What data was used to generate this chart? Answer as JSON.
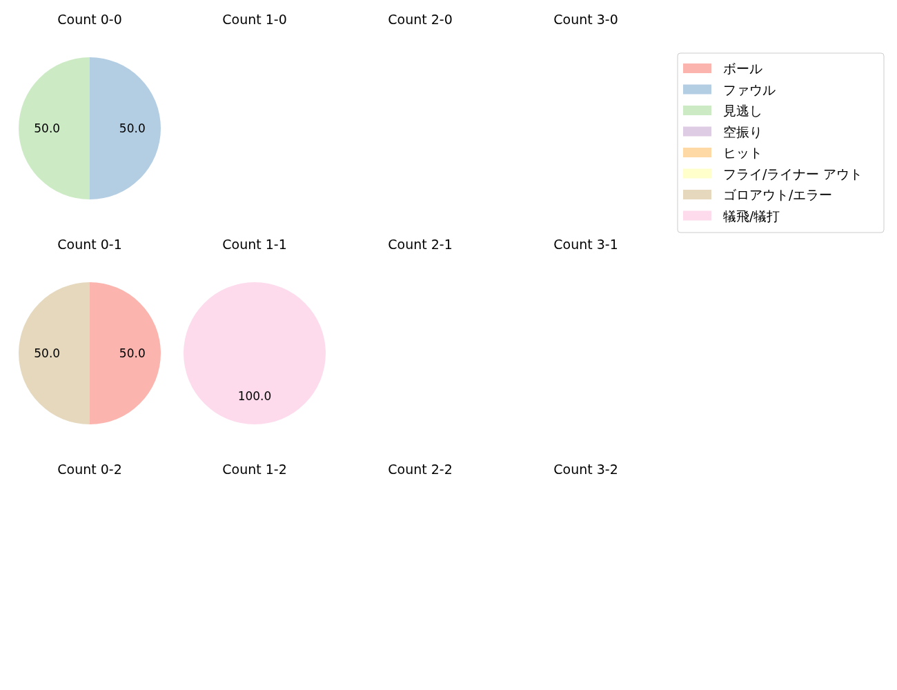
{
  "chart_data": [
    {
      "type": "pie",
      "title": "Count 0-0",
      "legend": "right",
      "categories": [
        "ボール",
        "ファウル",
        "見逃し",
        "空振り",
        "ヒット",
        "フライ/ライナー アウト",
        "ゴロアウト/エラー",
        "犠飛/犠打"
      ],
      "values": [
        0,
        50,
        50,
        0,
        0,
        0,
        0,
        0
      ],
      "value_labels": [
        null,
        "50.0",
        "50.0",
        null,
        null,
        null,
        null,
        null
      ],
      "colors": [
        "#fbb4ae",
        "#b3cde3",
        "#ccebc5",
        "#decbe4",
        "#fed9a6",
        "#ffffcc",
        "#e5d8bd",
        "#fddaec"
      ]
    },
    {
      "type": "pie",
      "title": "Count 1-0"
    },
    {
      "type": "pie",
      "title": "Count 2-0"
    },
    {
      "type": "pie",
      "title": "Count 3-0"
    },
    {
      "type": "pie",
      "title": "Count 0-1",
      "values": [
        50,
        50
      ],
      "value_labels": [
        "50.0",
        "50.0"
      ],
      "colors": [
        "#fbb4ae",
        "#e5d8bd"
      ]
    },
    {
      "type": "pie",
      "title": "Count 1-1",
      "values": [
        100
      ],
      "value_labels": [
        "100.0"
      ],
      "colors": [
        "#fddaec"
      ]
    },
    {
      "type": "pie",
      "title": "Count 2-1"
    },
    {
      "type": "pie",
      "title": "Count 3-1"
    },
    {
      "type": "pie",
      "title": "Count 0-2"
    },
    {
      "type": "pie",
      "title": "Count 1-2"
    },
    {
      "type": "pie",
      "title": "Count 2-2"
    },
    {
      "type": "pie",
      "title": "Count 3-2"
    }
  ]
}
